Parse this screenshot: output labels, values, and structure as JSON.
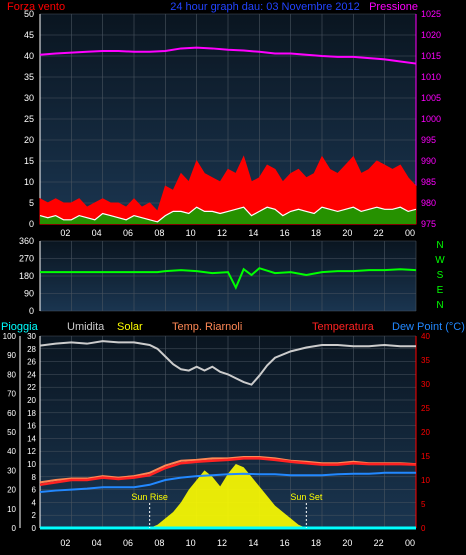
{
  "colors": {
    "background": "#000000",
    "plot_bg_top": "#0a1520",
    "plot_bg_bottom": "#1a3550",
    "grid": "#4a5560",
    "wind_speed": "#ff0000",
    "wind_avg": "#ffffff",
    "wind_green": "#00aa00",
    "pressure": "#ff00ff",
    "direction": "#00ff00",
    "humidity": "#cccccc",
    "solar": "#ffff00",
    "apparent_temp": "#ff8855",
    "temperature": "#ff2222",
    "dew_point": "#2288ff",
    "rain": "#00ffff",
    "left_axis": "#ffffff",
    "right_axis_red": "#ff0000",
    "x_axis": "#ffffff"
  },
  "chart_data": [
    {
      "type": "line",
      "title": "24 hour graph dau: 03 Novembre 2012",
      "legend": {
        "left": "Forza vento",
        "right": "Pressione"
      },
      "x_ticks": [
        "02",
        "04",
        "06",
        "08",
        "10",
        "12",
        "14",
        "16",
        "18",
        "20",
        "22",
        "00"
      ],
      "xlim": [
        0,
        24
      ],
      "y_left": {
        "ticks": [
          "50",
          "45",
          "40",
          "35",
          "30",
          "25",
          "20",
          "15",
          "10",
          "5",
          "0"
        ],
        "lim": [
          0,
          50
        ]
      },
      "y_right": {
        "ticks": [
          "1025",
          "1020",
          "1015",
          "1010",
          "1005",
          "1000",
          "995",
          "990",
          "985",
          "980",
          "975"
        ],
        "lim": [
          975,
          1025
        ]
      },
      "series": [
        {
          "name": "Pressione",
          "axis": "right",
          "x": [
            0,
            1,
            2,
            3,
            4,
            5,
            6,
            7,
            8,
            9,
            10,
            11,
            12,
            13,
            14,
            15,
            16,
            17,
            18,
            19,
            20,
            21,
            22,
            23,
            24
          ],
          "values": [
            1015.3,
            1015.6,
            1015.8,
            1016.0,
            1016.2,
            1016.2,
            1016.0,
            1016.0,
            1016.2,
            1016.8,
            1017.0,
            1016.8,
            1016.5,
            1016.3,
            1016.0,
            1015.6,
            1015.6,
            1015.3,
            1015.0,
            1014.8,
            1014.8,
            1014.5,
            1014.2,
            1013.7,
            1013.2
          ]
        },
        {
          "name": "Forza vento",
          "axis": "left",
          "x": [
            0,
            0.5,
            1,
            1.5,
            2,
            2.5,
            3,
            3.5,
            4,
            4.5,
            5,
            5.5,
            6,
            6.5,
            7,
            7.5,
            8,
            8.5,
            9,
            9.5,
            10,
            10.5,
            11,
            11.5,
            12,
            12.5,
            13,
            13.5,
            14,
            14.5,
            15,
            15.5,
            16,
            16.5,
            17,
            17.5,
            18,
            18.5,
            19,
            19.5,
            20,
            20.5,
            21,
            21.5,
            22,
            22.5,
            23,
            23.5,
            24
          ],
          "values": [
            6,
            5,
            6,
            5,
            5,
            6,
            4,
            5,
            6,
            5,
            5,
            4,
            6,
            4,
            5,
            3,
            9,
            8,
            12,
            10,
            15,
            12,
            11,
            10,
            13,
            12,
            16,
            10,
            11,
            14,
            13,
            10,
            12,
            13,
            11,
            12,
            16,
            13,
            12,
            14,
            16,
            12,
            13,
            15,
            14,
            13,
            14,
            11,
            9
          ]
        },
        {
          "name": "",
          "axis": "left",
          "x": [
            0,
            0.5,
            1,
            1.5,
            2,
            2.5,
            3,
            3.5,
            4,
            4.5,
            5,
            5.5,
            6,
            6.5,
            7,
            7.5,
            8,
            8.5,
            9,
            9.5,
            10,
            10.5,
            11,
            11.5,
            12,
            12.5,
            13,
            13.5,
            14,
            14.5,
            15,
            15.5,
            16,
            16.5,
            17,
            17.5,
            18,
            18.5,
            19,
            19.5,
            20,
            20.5,
            21,
            21.5,
            22,
            22.5,
            23,
            23.5,
            24
          ],
          "values": [
            2,
            1.5,
            2,
            1,
            1,
            2,
            1.5,
            1,
            2.5,
            2,
            1.5,
            1,
            2,
            1.5,
            1,
            0.5,
            2,
            3,
            3,
            2.5,
            4,
            3,
            3,
            2.5,
            3,
            3.5,
            4,
            2,
            3,
            4,
            3.5,
            2,
            3,
            3.5,
            3,
            2.5,
            4,
            3.5,
            3,
            3.5,
            4,
            3,
            3.5,
            4,
            3.5,
            3.5,
            4,
            3,
            3.5
          ]
        }
      ]
    },
    {
      "type": "line",
      "legend": [
        "N",
        "W",
        "S",
        "E",
        "N"
      ],
      "y_left": {
        "ticks": [
          "360",
          "270",
          "180",
          "90",
          "0"
        ],
        "lim": [
          0,
          360
        ]
      },
      "xlim": [
        0,
        24
      ],
      "series": [
        {
          "name": "",
          "x": [
            0,
            2,
            4,
            6,
            7.5,
            8,
            9,
            10,
            11,
            12,
            12.5,
            13,
            13.5,
            14,
            15,
            16,
            17,
            18,
            19,
            20,
            21,
            22,
            23,
            24
          ],
          "values": [
            200,
            200,
            200,
            200,
            200,
            205,
            210,
            205,
            195,
            200,
            120,
            215,
            185,
            220,
            195,
            200,
            185,
            200,
            205,
            205,
            210,
            210,
            215,
            210
          ]
        }
      ]
    },
    {
      "type": "line",
      "legend": [
        "Pioggia",
        "Umidita",
        "Solar",
        "Temp. Riarnoli",
        "Temperatura",
        "Dew Point (°C)"
      ],
      "x_ticks": [
        "02",
        "04",
        "06",
        "08",
        "10",
        "12",
        "14",
        "16",
        "18",
        "20",
        "22",
        "00"
      ],
      "xlim": [
        0,
        24
      ],
      "y_left_outer": {
        "ticks": [
          "100",
          "90",
          "80",
          "70",
          "60",
          "50",
          "40",
          "30",
          "20",
          "10",
          "0"
        ],
        "lim": [
          0,
          100
        ]
      },
      "y_left_inner": {
        "ticks": [
          "30",
          "28",
          "26",
          "24",
          "22",
          "20",
          "18",
          "16",
          "14",
          "12",
          "10",
          "8",
          "6",
          "4",
          "2",
          "0"
        ],
        "lim": [
          0,
          30
        ]
      },
      "y_right": {
        "ticks": [
          "40",
          "35",
          "30",
          "25",
          "20",
          "15",
          "10",
          "5",
          "0"
        ],
        "lim": [
          0,
          40
        ]
      },
      "annotations": [
        {
          "text": "Sun Rise",
          "x": 7
        },
        {
          "text": "Sun Set",
          "x": 17
        }
      ],
      "series": [
        {
          "name": "Umidita",
          "axis": "left_inner",
          "x": [
            0,
            1,
            2,
            3,
            4,
            5,
            6,
            7,
            7.5,
            8,
            8.5,
            9,
            9.5,
            10,
            10.5,
            11,
            11.5,
            12,
            12.5,
            13,
            13.5,
            14,
            14.5,
            15,
            16,
            17,
            18,
            19,
            20,
            21,
            22,
            23,
            24
          ],
          "values": [
            28.5,
            28.8,
            29.0,
            28.8,
            29.2,
            29.0,
            29.0,
            28.6,
            28.0,
            26.8,
            25.6,
            24.8,
            24.6,
            25.2,
            24.6,
            25.2,
            24.4,
            24.0,
            23.4,
            22.8,
            22.4,
            23.8,
            25.4,
            26.6,
            27.6,
            28.2,
            28.6,
            28.6,
            28.4,
            28.4,
            28.6,
            28.4,
            28.4
          ]
        },
        {
          "name": "Temp. Riarnoli",
          "axis": "right",
          "x": [
            0,
            1,
            2,
            3,
            4,
            5,
            6,
            7,
            8,
            9,
            10,
            11,
            12,
            13,
            14,
            15,
            16,
            17,
            18,
            19,
            20,
            21,
            22,
            23,
            24
          ],
          "values": [
            9.5,
            10.0,
            10.3,
            10.3,
            10.8,
            10.5,
            10.8,
            11.5,
            13.0,
            14.0,
            14.2,
            14.5,
            14.5,
            14.8,
            14.8,
            14.5,
            14.0,
            13.8,
            13.5,
            13.5,
            13.8,
            13.5,
            13.5,
            13.5,
            13.3
          ]
        },
        {
          "name": "Temperatura",
          "axis": "right",
          "x": [
            0,
            1,
            2,
            3,
            4,
            5,
            6,
            7,
            8,
            9,
            10,
            11,
            12,
            13,
            14,
            15,
            16,
            17,
            18,
            19,
            20,
            21,
            22,
            23,
            24
          ],
          "values": [
            9.0,
            9.5,
            10.0,
            10.0,
            10.5,
            10.2,
            10.5,
            11.0,
            12.5,
            13.5,
            13.8,
            14.0,
            14.2,
            14.5,
            14.5,
            14.2,
            13.8,
            13.5,
            13.2,
            13.2,
            13.5,
            13.3,
            13.3,
            13.3,
            13.2
          ]
        },
        {
          "name": "Dew Point (°C)",
          "axis": "right",
          "x": [
            0,
            1,
            2,
            3,
            4,
            5,
            6,
            7,
            8,
            9,
            10,
            11,
            12,
            13,
            14,
            15,
            16,
            17,
            18,
            19,
            20,
            21,
            22,
            23,
            24
          ],
          "values": [
            7.5,
            7.8,
            8.0,
            8.2,
            8.5,
            8.5,
            8.5,
            9.0,
            10.0,
            10.5,
            10.8,
            11.0,
            11.2,
            11.3,
            11.2,
            11.2,
            11.0,
            11.0,
            11.0,
            11.2,
            11.3,
            11.3,
            11.5,
            11.5,
            11.5
          ]
        },
        {
          "name": "Solar",
          "axis": "left_inner",
          "x": [
            7,
            7.5,
            8,
            8.5,
            9,
            9.5,
            10,
            10.5,
            11,
            11.5,
            12,
            12.5,
            13,
            13.5,
            14,
            14.5,
            15,
            15.5,
            16,
            16.5,
            17
          ],
          "values": [
            0,
            0.5,
            1.5,
            2.5,
            4.0,
            6.0,
            7.5,
            9.0,
            8.0,
            6.5,
            8.5,
            10.0,
            9.5,
            8.0,
            6.5,
            5.0,
            3.5,
            2.5,
            1.5,
            0.5,
            0
          ]
        },
        {
          "name": "Pioggia",
          "axis": "left_outer",
          "x": [
            0,
            24
          ],
          "values": [
            0,
            0
          ]
        }
      ]
    }
  ]
}
